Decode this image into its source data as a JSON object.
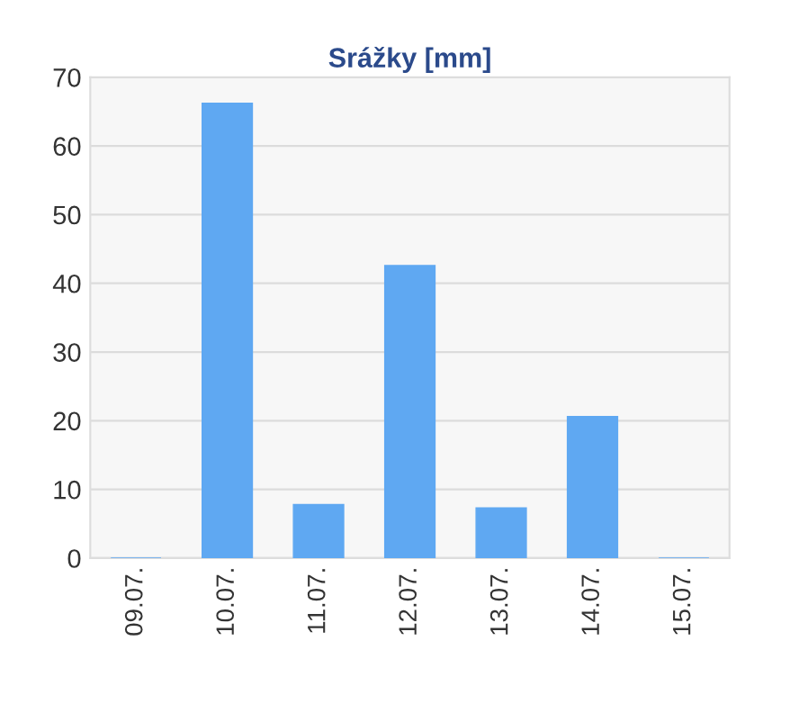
{
  "chart_data": {
    "type": "bar",
    "title": "Srážky [mm]",
    "categories": [
      "09.07.",
      "10.07.",
      "11.07.",
      "12.07.",
      "13.07.",
      "14.07.",
      "15.07."
    ],
    "values": [
      0,
      66.2,
      7.8,
      42.6,
      7.3,
      20.6,
      0
    ],
    "color": "#5fa8f2",
    "ylim": [
      0,
      70
    ],
    "yticks": [
      0,
      10,
      20,
      30,
      40,
      50,
      60,
      70
    ],
    "grid": "y",
    "legend": false
  }
}
